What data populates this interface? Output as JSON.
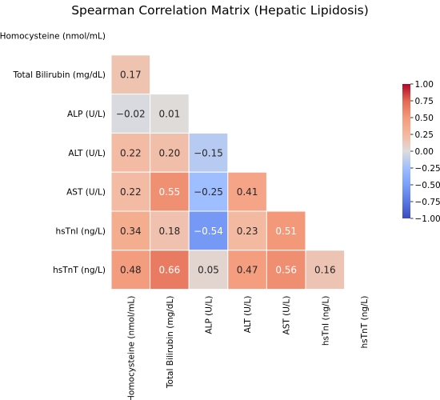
{
  "chart_data": {
    "type": "heatmap",
    "title": "Spearman Correlation Matrix (Hepatic Lipidosis)",
    "variables": [
      "Homocysteine (nmol/mL)",
      "Total Bilirubin (mg/dL)",
      "ALP (U/L)",
      "ALT (U/L)",
      "AST (U/L)",
      "hsTnI (ng/L)",
      "hsTnT (ng/L)"
    ],
    "mask": "upper-triangle-and-diagonal",
    "values": [
      [
        null,
        null,
        null,
        null,
        null,
        null,
        null
      ],
      [
        0.17,
        null,
        null,
        null,
        null,
        null,
        null
      ],
      [
        -0.02,
        0.01,
        null,
        null,
        null,
        null,
        null
      ],
      [
        0.22,
        0.2,
        -0.15,
        null,
        null,
        null,
        null
      ],
      [
        0.22,
        0.55,
        -0.25,
        0.41,
        null,
        null,
        null
      ],
      [
        0.34,
        0.18,
        -0.54,
        0.23,
        0.51,
        null,
        null
      ],
      [
        0.48,
        0.66,
        0.05,
        0.47,
        0.56,
        0.16,
        null
      ]
    ],
    "colorbar": {
      "colormap": "coolwarm",
      "vmin": -1.0,
      "vmax": 1.0,
      "ticks": [
        "1.00",
        "0.75",
        "0.50",
        "0.25",
        "0.00",
        "−0.25",
        "−0.50",
        "−0.75",
        "−1.00"
      ]
    },
    "grid": false
  }
}
